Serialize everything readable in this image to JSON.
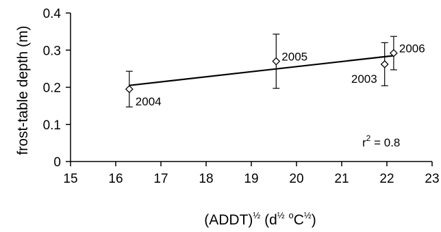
{
  "chart_data": {
    "type": "scatter",
    "title": "",
    "xlabel": "(ADDT)½ (d½ °C½)",
    "xlabel_parts": {
      "pre": "(ADDT)",
      "sup1": "½",
      "mid": " (d",
      "sup2": "½",
      "mid2": " ",
      "sup3": "o",
      "mid3": "C",
      "sup4": "½",
      "post": ")"
    },
    "ylabel": "frost-table depth (m)",
    "xlim": [
      15,
      23
    ],
    "ylim": [
      0,
      0.4
    ],
    "xticks": [
      15,
      16,
      17,
      18,
      19,
      20,
      21,
      22,
      23
    ],
    "yticks": [
      0,
      0.1,
      0.2,
      0.3,
      0.4
    ],
    "ytick_labels": [
      "0",
      "0.1",
      "0.2",
      "0.3",
      "0.4"
    ],
    "grid": false,
    "points": [
      {
        "label": "2004",
        "x": 16.3,
        "y": 0.195,
        "err": 0.048,
        "label_side": "below-right"
      },
      {
        "label": "2005",
        "x": 19.55,
        "y": 0.27,
        "err": 0.073,
        "label_side": "right"
      },
      {
        "label": "2003",
        "x": 21.95,
        "y": 0.262,
        "err": 0.058,
        "label_side": "left"
      },
      {
        "label": "2006",
        "x": 22.15,
        "y": 0.292,
        "err": 0.045,
        "label_side": "right"
      }
    ],
    "fit_line": {
      "x": [
        16.3,
        22.15
      ],
      "y": [
        0.205,
        0.285
      ]
    },
    "annotation": {
      "pre": "r",
      "sup": "2",
      "post": " = 0.8"
    }
  }
}
